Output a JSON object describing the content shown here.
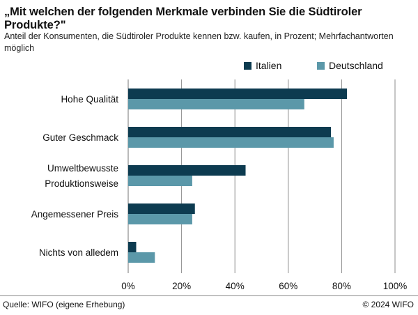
{
  "title": "„Mit welchen der folgenden Merkmale verbinden Sie die Südtiroler Produkte?\"",
  "subtitle": "Anteil der Konsumenten, die Südtiroler Produkte kennen bzw. kaufen, in Prozent; Mehrfachantworten möglich",
  "source": "Quelle: WIFO (eigene Erhebung)",
  "copyright": "© 2024 WIFO",
  "colors": {
    "italien": "#0d3b50",
    "deutschland": "#5b98a9",
    "grid": "#8c8c8c"
  },
  "chart_data": {
    "type": "bar",
    "orientation": "horizontal",
    "categories": [
      [
        "Hohe Qualität"
      ],
      [
        "Guter Geschmack"
      ],
      [
        "Umweltbewusste",
        "Produktionsweise"
      ],
      [
        "Angemessener Preis"
      ],
      [
        "Nichts von alledem"
      ]
    ],
    "series": [
      {
        "name": "Italien",
        "values": [
          82,
          76,
          44,
          25,
          3
        ]
      },
      {
        "name": "Deutschland",
        "values": [
          66,
          77,
          24,
          24,
          10
        ]
      }
    ],
    "xlim": [
      0,
      100
    ],
    "xticks": [
      0,
      20,
      40,
      60,
      80,
      100
    ],
    "xtick_labels": [
      "0%",
      "20%",
      "40%",
      "60%",
      "80%",
      "100%"
    ],
    "grid": "vertical",
    "legend_position": "top-right"
  }
}
